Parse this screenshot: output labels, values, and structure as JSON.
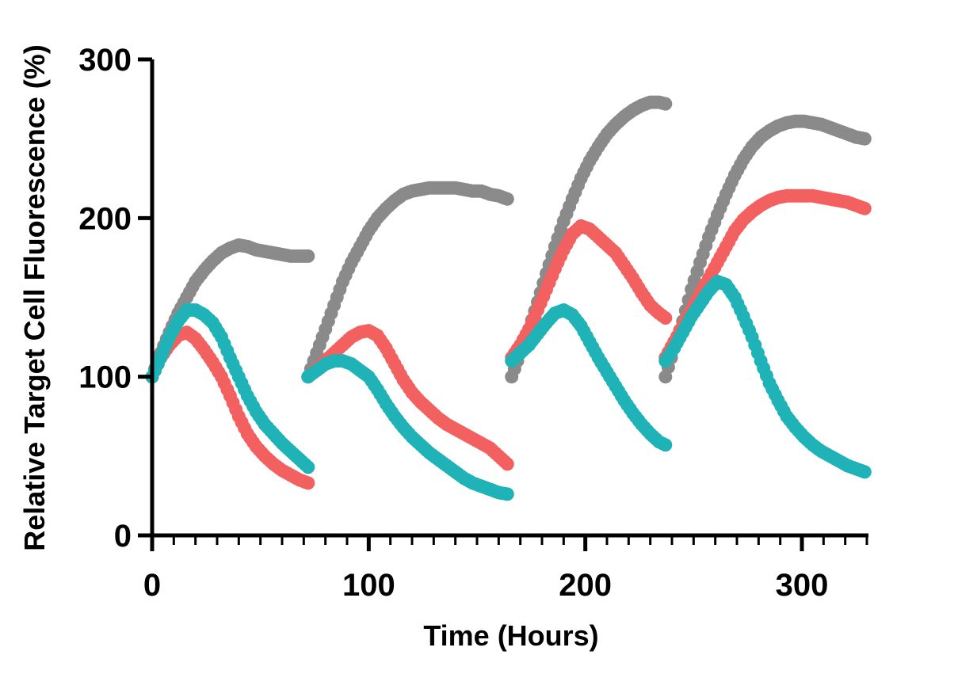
{
  "chart_data": {
    "type": "scatter",
    "title": "",
    "xlabel": "Time (Hours)",
    "ylabel": "Relative Target Cell Fluorescence (%)",
    "xlim": [
      0,
      330
    ],
    "ylim": [
      0,
      300
    ],
    "x_major_ticks": [
      0,
      100,
      200,
      300
    ],
    "x_tick_labels": [
      "0",
      "100",
      "200",
      "300"
    ],
    "x_minor_tick_step": 10,
    "y_major_ticks": [
      0,
      100,
      200,
      300
    ],
    "y_tick_labels": [
      "0",
      "100",
      "200",
      "300"
    ],
    "grid": false,
    "legend": false,
    "segments": [
      {
        "start": 0,
        "end": 72
      },
      {
        "start": 72,
        "end": 166
      },
      {
        "start": 166,
        "end": 237
      },
      {
        "start": 237,
        "end": 330
      }
    ],
    "series": [
      {
        "name": "grey",
        "color": "#8a8a8a",
        "segments": [
          [
            [
              0,
              100
            ],
            [
              4,
              115
            ],
            [
              8,
              128
            ],
            [
              12,
              140
            ],
            [
              16,
              150
            ],
            [
              20,
              160
            ],
            [
              24,
              167
            ],
            [
              28,
              173
            ],
            [
              32,
              178
            ],
            [
              36,
              181
            ],
            [
              40,
              183
            ],
            [
              44,
              182
            ],
            [
              48,
              180
            ],
            [
              52,
              179
            ],
            [
              56,
              178
            ],
            [
              60,
              177
            ],
            [
              64,
              176
            ],
            [
              68,
              176
            ],
            [
              72,
              176
            ]
          ],
          [
            [
              72,
              100
            ],
            [
              76,
              115
            ],
            [
              80,
              130
            ],
            [
              84,
              145
            ],
            [
              88,
              160
            ],
            [
              92,
              172
            ],
            [
              96,
              182
            ],
            [
              100,
              192
            ],
            [
              104,
              200
            ],
            [
              108,
              206
            ],
            [
              112,
              211
            ],
            [
              116,
              215
            ],
            [
              120,
              217
            ],
            [
              124,
              218
            ],
            [
              128,
              219
            ],
            [
              132,
              219
            ],
            [
              136,
              219
            ],
            [
              140,
              219
            ],
            [
              144,
              218
            ],
            [
              148,
              217
            ],
            [
              152,
              217
            ],
            [
              156,
              215
            ],
            [
              160,
              214
            ],
            [
              164,
              212
            ]
          ],
          [
            [
              166,
              100
            ],
            [
              170,
              115
            ],
            [
              174,
              130
            ],
            [
              178,
              147
            ],
            [
              182,
              165
            ],
            [
              186,
              182
            ],
            [
              190,
              198
            ],
            [
              194,
              212
            ],
            [
              198,
              225
            ],
            [
              202,
              236
            ],
            [
              206,
              245
            ],
            [
              210,
              253
            ],
            [
              214,
              259
            ],
            [
              218,
              264
            ],
            [
              222,
              268
            ],
            [
              226,
              271
            ],
            [
              230,
              273
            ],
            [
              234,
              273
            ],
            [
              237,
              272
            ]
          ],
          [
            [
              237,
              100
            ],
            [
              241,
              118
            ],
            [
              245,
              135
            ],
            [
              249,
              155
            ],
            [
              253,
              172
            ],
            [
              257,
              188
            ],
            [
              261,
              202
            ],
            [
              265,
              215
            ],
            [
              269,
              227
            ],
            [
              273,
              237
            ],
            [
              277,
              245
            ],
            [
              281,
              251
            ],
            [
              285,
              255
            ],
            [
              289,
              258
            ],
            [
              293,
              260
            ],
            [
              297,
              261
            ],
            [
              301,
              261
            ],
            [
              305,
              260
            ],
            [
              309,
              259
            ],
            [
              313,
              257
            ],
            [
              317,
              255
            ],
            [
              321,
              253
            ],
            [
              325,
              251
            ],
            [
              329,
              250
            ]
          ]
        ]
      },
      {
        "name": "red",
        "color": "#f26060",
        "segments": [
          [
            [
              0,
              100
            ],
            [
              4,
              112
            ],
            [
              8,
              120
            ],
            [
              12,
              126
            ],
            [
              16,
              128
            ],
            [
              20,
              124
            ],
            [
              24,
              117
            ],
            [
              28,
              109
            ],
            [
              32,
              100
            ],
            [
              36,
              88
            ],
            [
              40,
              75
            ],
            [
              44,
              64
            ],
            [
              48,
              56
            ],
            [
              52,
              50
            ],
            [
              56,
              45
            ],
            [
              60,
              41
            ],
            [
              64,
              38
            ],
            [
              68,
              35
            ],
            [
              72,
              33
            ]
          ],
          [
            [
              72,
              100
            ],
            [
              76,
              105
            ],
            [
              80,
              110
            ],
            [
              84,
              115
            ],
            [
              88,
              120
            ],
            [
              92,
              125
            ],
            [
              96,
              128
            ],
            [
              100,
              129
            ],
            [
              104,
              126
            ],
            [
              108,
              118
            ],
            [
              112,
              108
            ],
            [
              116,
              98
            ],
            [
              120,
              90
            ],
            [
              124,
              84
            ],
            [
              128,
              79
            ],
            [
              132,
              74
            ],
            [
              136,
              70
            ],
            [
              140,
              67
            ],
            [
              144,
              64
            ],
            [
              148,
              61
            ],
            [
              152,
              58
            ],
            [
              156,
              55
            ],
            [
              160,
              50
            ],
            [
              164,
              45
            ]
          ],
          [
            [
              166,
              112
            ],
            [
              170,
              120
            ],
            [
              174,
              130
            ],
            [
              178,
              142
            ],
            [
              182,
              155
            ],
            [
              186,
              168
            ],
            [
              190,
              180
            ],
            [
              194,
              190
            ],
            [
              198,
              195
            ],
            [
              202,
              193
            ],
            [
              206,
              188
            ],
            [
              210,
              183
            ],
            [
              214,
              178
            ],
            [
              218,
              170
            ],
            [
              222,
              162
            ],
            [
              226,
              153
            ],
            [
              230,
              145
            ],
            [
              234,
              140
            ],
            [
              237,
              137
            ]
          ],
          [
            [
              237,
              112
            ],
            [
              241,
              122
            ],
            [
              245,
              132
            ],
            [
              249,
              142
            ],
            [
              253,
              152
            ],
            [
              257,
              162
            ],
            [
              261,
              172
            ],
            [
              265,
              182
            ],
            [
              269,
              192
            ],
            [
              273,
              199
            ],
            [
              277,
              204
            ],
            [
              281,
              208
            ],
            [
              285,
              211
            ],
            [
              289,
              213
            ],
            [
              293,
              214
            ],
            [
              297,
              214
            ],
            [
              301,
              214
            ],
            [
              305,
              214
            ],
            [
              309,
              213
            ],
            [
              313,
              212
            ],
            [
              317,
              211
            ],
            [
              321,
              210
            ],
            [
              325,
              208
            ],
            [
              329,
              206
            ]
          ]
        ]
      },
      {
        "name": "teal",
        "color": "#1fb3b8",
        "segments": [
          [
            [
              0,
              100
            ],
            [
              4,
              112
            ],
            [
              8,
              125
            ],
            [
              12,
              135
            ],
            [
              16,
              142
            ],
            [
              20,
              142
            ],
            [
              24,
              139
            ],
            [
              28,
              134
            ],
            [
              32,
              125
            ],
            [
              36,
              112
            ],
            [
              40,
              100
            ],
            [
              44,
              88
            ],
            [
              48,
              78
            ],
            [
              52,
              70
            ],
            [
              56,
              64
            ],
            [
              60,
              58
            ],
            [
              64,
              53
            ],
            [
              68,
              48
            ],
            [
              72,
              43
            ]
          ],
          [
            [
              72,
              100
            ],
            [
              76,
              104
            ],
            [
              80,
              108
            ],
            [
              84,
              110
            ],
            [
              88,
              110
            ],
            [
              92,
              108
            ],
            [
              96,
              104
            ],
            [
              100,
              100
            ],
            [
              104,
              92
            ],
            [
              108,
              83
            ],
            [
              112,
              75
            ],
            [
              116,
              68
            ],
            [
              120,
              62
            ],
            [
              124,
              57
            ],
            [
              128,
              52
            ],
            [
              132,
              48
            ],
            [
              136,
              44
            ],
            [
              140,
              40
            ],
            [
              144,
              36
            ],
            [
              148,
              33
            ],
            [
              152,
              31
            ],
            [
              156,
              29
            ],
            [
              160,
              27
            ],
            [
              164,
              26
            ]
          ],
          [
            [
              166,
              110
            ],
            [
              170,
              115
            ],
            [
              174,
              120
            ],
            [
              178,
              127
            ],
            [
              182,
              134
            ],
            [
              186,
              140
            ],
            [
              190,
              142
            ],
            [
              194,
              139
            ],
            [
              198,
              132
            ],
            [
              202,
              122
            ],
            [
              206,
              112
            ],
            [
              210,
              103
            ],
            [
              214,
              94
            ],
            [
              218,
              85
            ],
            [
              222,
              77
            ],
            [
              226,
              70
            ],
            [
              230,
              64
            ],
            [
              234,
              59
            ],
            [
              237,
              57
            ]
          ],
          [
            [
              237,
              110
            ],
            [
              241,
              118
            ],
            [
              245,
              128
            ],
            [
              249,
              138
            ],
            [
              253,
              146
            ],
            [
              257,
              154
            ],
            [
              261,
              160
            ],
            [
              265,
              158
            ],
            [
              269,
              150
            ],
            [
              273,
              138
            ],
            [
              277,
              125
            ],
            [
              281,
              110
            ],
            [
              285,
              96
            ],
            [
              289,
              85
            ],
            [
              293,
              75
            ],
            [
              297,
              68
            ],
            [
              301,
              62
            ],
            [
              305,
              57
            ],
            [
              309,
              53
            ],
            [
              313,
              50
            ],
            [
              317,
              47
            ],
            [
              321,
              44
            ],
            [
              325,
              42
            ],
            [
              329,
              40
            ]
          ]
        ]
      }
    ]
  }
}
